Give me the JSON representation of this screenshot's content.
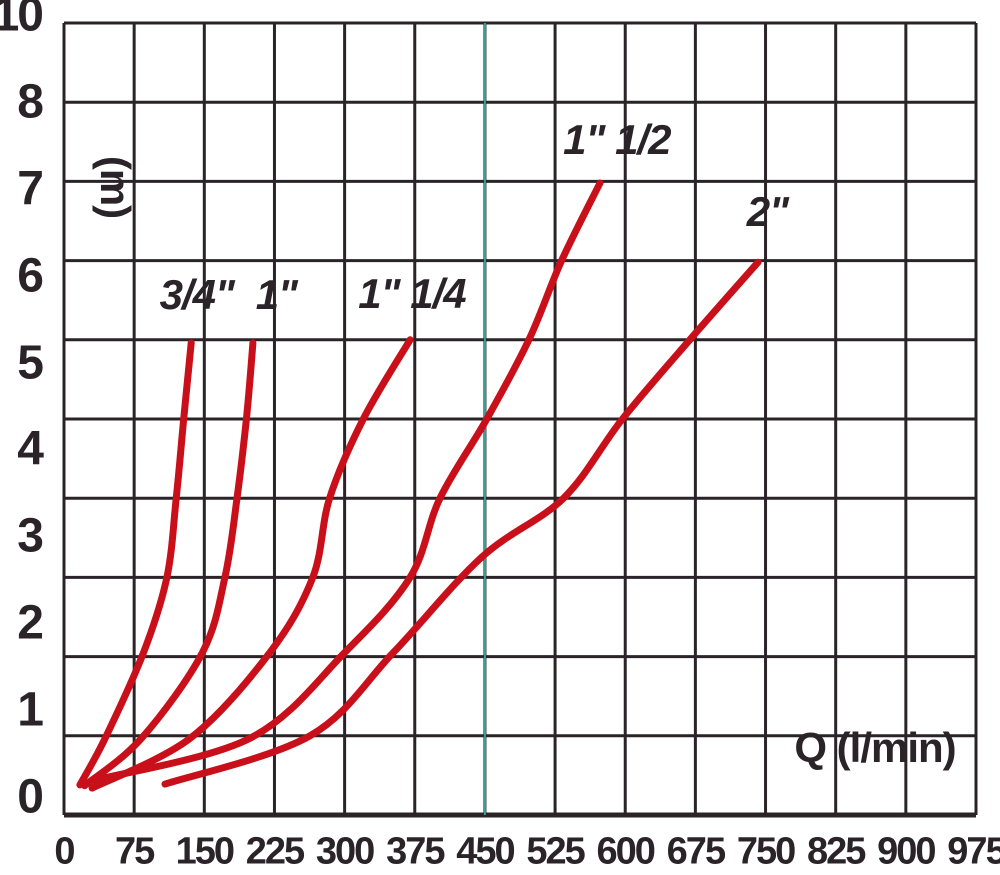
{
  "colors": {
    "background": "#ffffff",
    "grid": "#2a2428",
    "text": "#2a2428",
    "curve": "#c9101a",
    "highlight_line": "#38a296"
  },
  "chart_data": {
    "type": "line",
    "title": "",
    "xlabel": "Q (l/min)",
    "ylabel": "(m)",
    "xlim": [
      0,
      975
    ],
    "ylim": [
      0,
      10
    ],
    "grid": true,
    "x_tick_labels": [
      "0",
      "75",
      "150",
      "225",
      "300",
      "375",
      "450",
      "525",
      "600",
      "675",
      "750",
      "825",
      "900",
      "975"
    ],
    "y_tick_labels": [
      "10",
      "8",
      "7",
      "6",
      "5",
      "4",
      "3",
      "2",
      "1",
      "0"
    ],
    "highlight_x": 450,
    "series": [
      {
        "name": "3/4\"",
        "label_anchor": {
          "q": 142,
          "h": 6.57
        },
        "points": [
          [
            17,
            0.38
          ],
          [
            44,
            0.97
          ],
          [
            85,
            2.05
          ],
          [
            110,
            3.0
          ],
          [
            120,
            4.0
          ],
          [
            128,
            5.0
          ],
          [
            136,
            5.96
          ]
        ]
      },
      {
        "name": "1\"",
        "label_anchor": {
          "q": 227,
          "h": 6.57
        },
        "points": [
          [
            22,
            0.37
          ],
          [
            83,
            0.97
          ],
          [
            148,
            2.05
          ],
          [
            172,
            3.0
          ],
          [
            185,
            4.0
          ],
          [
            195,
            5.0
          ],
          [
            202,
            5.96
          ]
        ]
      },
      {
        "name": "1\" 1/4",
        "label_anchor": {
          "q": 372,
          "h": 6.58
        },
        "points": [
          [
            30,
            0.34
          ],
          [
            135,
            0.97
          ],
          [
            220,
            2.05
          ],
          [
            266,
            3.0
          ],
          [
            284,
            4.0
          ],
          [
            320,
            5.0
          ],
          [
            370,
            6.0
          ]
        ]
      },
      {
        "name": "1\" 1/2",
        "label_anchor": {
          "q": 591,
          "h": 8.52
        },
        "points": [
          [
            33,
            0.44
          ],
          [
            199,
            0.97
          ],
          [
            300,
            2.05
          ],
          [
            370,
            3.0
          ],
          [
            402,
            4.0
          ],
          [
            452,
            5.0
          ],
          [
            497,
            6.0
          ],
          [
            532,
            7.0
          ],
          [
            573,
            7.98
          ]
        ]
      },
      {
        "name": "2\"",
        "label_anchor": {
          "q": 752,
          "h": 7.61
        },
        "points": [
          [
            108,
            0.39
          ],
          [
            263,
            1.0
          ],
          [
            352,
            2.05
          ],
          [
            447,
            3.26
          ],
          [
            534,
            4.0
          ],
          [
            597,
            5.0
          ],
          [
            669,
            6.0
          ],
          [
            742,
            6.98
          ]
        ]
      }
    ]
  }
}
